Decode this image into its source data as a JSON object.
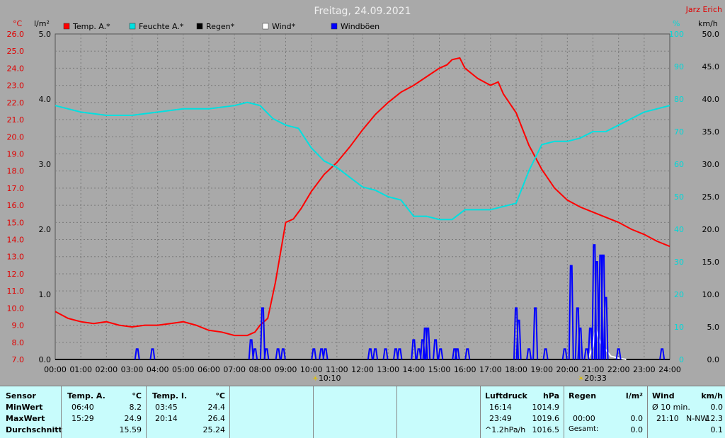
{
  "header": {
    "title": "Freitag, 24.09.2021",
    "author": "Jarz Erich"
  },
  "axes": {
    "left_unit_temp": "°C",
    "left_unit_rain": "l/m²",
    "right_unit_hum": "%",
    "right_unit_wind": "km/h",
    "temp_ticks": [
      "26.0",
      "25.0",
      "24.0",
      "23.0",
      "22.0",
      "21.0",
      "20.0",
      "19.0",
      "18.0",
      "17.0",
      "16.0",
      "15.0",
      "14.0",
      "13.0",
      "12.0",
      "11.0",
      "10.0",
      "9.0",
      "8.0",
      "7.0"
    ],
    "rain_ticks": [
      "5.0",
      "4.0",
      "3.0",
      "2.0",
      "1.0",
      "0.0"
    ],
    "hum_ticks": [
      "100",
      "90",
      "80",
      "70",
      "60",
      "50",
      "40",
      "30",
      "20",
      "10",
      "0"
    ],
    "wind_ticks": [
      "50.0",
      "45.0",
      "40.0",
      "35.0",
      "30.0",
      "25.0",
      "20.0",
      "15.0",
      "10.0",
      "5.0",
      "0.0"
    ],
    "time_ticks": [
      "00:00",
      "01:00",
      "02:00",
      "03:00",
      "04:00",
      "05:00",
      "06:00",
      "07:00",
      "08:00",
      "09:00",
      "10:00",
      "11:00",
      "12:00",
      "13:00",
      "14:00",
      "15:00",
      "16:00",
      "17:00",
      "18:00",
      "19:00",
      "20:00",
      "21:00",
      "22:00",
      "23:00",
      "24:00"
    ],
    "sun_markers": [
      {
        "time": "10:10",
        "hour": 10.17
      },
      {
        "time": "20:33",
        "hour": 20.55
      }
    ]
  },
  "chart_data": {
    "type": "line",
    "title": "Freitag, 24.09.2021",
    "x_unit": "hour of day",
    "xlim": [
      0,
      24
    ],
    "temp_ylim": [
      7,
      26
    ],
    "rain_ylim": [
      0,
      5
    ],
    "hum_ylim": [
      0,
      100
    ],
    "wind_ylim": [
      0,
      50
    ],
    "series": [
      {
        "name": "Temp. A.*",
        "color": "#ff0000",
        "axis": "temp",
        "x": [
          0,
          0.5,
          1,
          1.5,
          2,
          2.5,
          3,
          3.5,
          4,
          4.5,
          5,
          5.5,
          6,
          6.5,
          7,
          7.5,
          7.8,
          8,
          8.3,
          8.6,
          9,
          9.3,
          9.6,
          10,
          10.5,
          11,
          11.5,
          12,
          12.5,
          13,
          13.5,
          14,
          14.5,
          15,
          15.3,
          15.5,
          15.8,
          16,
          16.5,
          17,
          17.3,
          17.5,
          18,
          18.5,
          19,
          19.5,
          20,
          20.5,
          21,
          21.5,
          22,
          22.5,
          23,
          23.5,
          24
        ],
        "y": [
          9.8,
          9.4,
          9.2,
          9.1,
          9.2,
          9.0,
          8.9,
          9.0,
          9.0,
          9.1,
          9.2,
          9.0,
          8.7,
          8.6,
          8.4,
          8.4,
          8.6,
          9.0,
          9.4,
          11.5,
          15.0,
          15.2,
          15.8,
          16.8,
          17.8,
          18.5,
          19.4,
          20.4,
          21.3,
          22.0,
          22.6,
          23.0,
          23.5,
          24.0,
          24.2,
          24.5,
          24.6,
          24.0,
          23.4,
          23.0,
          23.2,
          22.5,
          21.4,
          19.5,
          18.1,
          17.0,
          16.3,
          15.9,
          15.6,
          15.3,
          15.0,
          14.6,
          14.3,
          13.9,
          13.6
        ]
      },
      {
        "name": "Feuchte A.*",
        "color": "#00e0e0",
        "axis": "hum",
        "x": [
          0,
          1,
          2,
          3,
          4,
          5,
          6,
          7,
          7.5,
          8,
          8.5,
          9,
          9.5,
          10,
          10.5,
          11,
          11.5,
          12,
          12.5,
          13,
          13.5,
          14,
          14.5,
          15,
          15.5,
          16,
          16.5,
          17,
          17.5,
          18,
          18.5,
          19,
          19.5,
          20,
          20.5,
          21,
          21.5,
          22,
          22.5,
          23,
          23.5,
          24
        ],
        "y": [
          78,
          76,
          75,
          75,
          76,
          77,
          77,
          78,
          79,
          78,
          74,
          72,
          71,
          65,
          61,
          59,
          56,
          53,
          52,
          50,
          49,
          44,
          44,
          43,
          43,
          46,
          46,
          46,
          47,
          48,
          58,
          66,
          67,
          67,
          68,
          70,
          70,
          72,
          74,
          76,
          77,
          78
        ]
      },
      {
        "name": "Regen*",
        "color": "#000000",
        "axis": "rain",
        "x": [
          0,
          24
        ],
        "y": [
          0,
          0
        ]
      },
      {
        "name": "Wind*",
        "color": "#ffffff",
        "axis": "wind",
        "x": [
          20.8,
          21,
          21.1,
          21.2,
          21.3,
          21.5,
          21.7,
          22,
          22.3
        ],
        "y": [
          0,
          2.0,
          4.8,
          3.5,
          2.5,
          1.5,
          0.5,
          0.2,
          0
        ]
      },
      {
        "name": "Windböen",
        "color": "#0000ff",
        "axis": "wind",
        "bursts": [
          {
            "x": 3.2,
            "y": 1.6
          },
          {
            "x": 3.8,
            "y": 1.6
          },
          {
            "x": 7.65,
            "y": 3.0
          },
          {
            "x": 7.8,
            "y": 1.6
          },
          {
            "x": 8.1,
            "y": 7.9
          },
          {
            "x": 8.25,
            "y": 1.6
          },
          {
            "x": 8.7,
            "y": 1.6
          },
          {
            "x": 8.9,
            "y": 1.6
          },
          {
            "x": 10.1,
            "y": 1.6
          },
          {
            "x": 10.4,
            "y": 1.6
          },
          {
            "x": 10.55,
            "y": 1.6
          },
          {
            "x": 12.3,
            "y": 1.6
          },
          {
            "x": 12.5,
            "y": 1.6
          },
          {
            "x": 12.9,
            "y": 1.6
          },
          {
            "x": 13.3,
            "y": 1.6
          },
          {
            "x": 13.45,
            "y": 1.6
          },
          {
            "x": 14.0,
            "y": 3.0
          },
          {
            "x": 14.2,
            "y": 1.6
          },
          {
            "x": 14.35,
            "y": 3.0
          },
          {
            "x": 14.45,
            "y": 4.8
          },
          {
            "x": 14.55,
            "y": 4.8
          },
          {
            "x": 14.85,
            "y": 3.0
          },
          {
            "x": 15.05,
            "y": 1.6
          },
          {
            "x": 15.6,
            "y": 1.6
          },
          {
            "x": 15.7,
            "y": 1.6
          },
          {
            "x": 16.1,
            "y": 1.6
          },
          {
            "x": 18.0,
            "y": 7.9
          },
          {
            "x": 18.1,
            "y": 6.0
          },
          {
            "x": 18.5,
            "y": 1.6
          },
          {
            "x": 18.75,
            "y": 7.9
          },
          {
            "x": 19.15,
            "y": 1.6
          },
          {
            "x": 19.9,
            "y": 1.6
          },
          {
            "x": 20.15,
            "y": 14.4
          },
          {
            "x": 20.4,
            "y": 7.9
          },
          {
            "x": 20.5,
            "y": 4.8
          },
          {
            "x": 20.75,
            "y": 1.6
          },
          {
            "x": 20.9,
            "y": 4.8
          },
          {
            "x": 21.05,
            "y": 17.6
          },
          {
            "x": 21.15,
            "y": 15.0
          },
          {
            "x": 21.3,
            "y": 16.0
          },
          {
            "x": 21.4,
            "y": 16.0
          },
          {
            "x": 21.5,
            "y": 9.5
          },
          {
            "x": 22.0,
            "y": 1.6
          },
          {
            "x": 23.7,
            "y": 1.6
          }
        ]
      }
    ]
  },
  "table": {
    "sensor": {
      "title": "Sensor",
      "rows": [
        "MinWert",
        "MaxWert",
        "Durchschnitt"
      ]
    },
    "temp_a": {
      "title": "Temp. A.",
      "unit": "°C",
      "time": [
        "06:40",
        "15:29",
        ""
      ],
      "val": [
        "8.2",
        "24.9",
        "15.59"
      ]
    },
    "temp_i": {
      "title": "Temp. I.",
      "unit": "°C",
      "time": [
        "03:45",
        "20:14",
        ""
      ],
      "val": [
        "24.4",
        "26.4",
        "25.24"
      ]
    },
    "luftdruck": {
      "title": "Luftdruck",
      "unit": "hPa",
      "time": [
        "16:14",
        "23:49",
        "^1.2hPa/h"
      ],
      "val": [
        "1014.9",
        "1019.6",
        "1016.5"
      ]
    },
    "regen": {
      "title": "Regen",
      "unit": "l/m²",
      "time": [
        "",
        "00:00",
        "Gesamt:"
      ],
      "val": [
        "",
        "0.0",
        "0.0"
      ]
    },
    "wind": {
      "title": "Wind",
      "unit": "km/h",
      "time": [
        "Ø 10 min.",
        "21:10",
        ""
      ],
      "dir": [
        "",
        "N-NW",
        ""
      ],
      "val": [
        "0.0",
        "12.3",
        "0.1"
      ]
    }
  }
}
